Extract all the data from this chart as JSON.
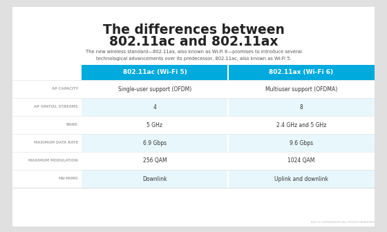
{
  "title_line1": "The differences between",
  "title_line2": "802.11ac and 802.11ax",
  "subtitle": "The new wireless standard—802.11ax, also known as Wi-Fi 6—promises to introduce several\ntechnological advancements over its predecessor, 802.11ac, also known as Wi-Fi 5.",
  "col_headers": [
    "802.11ac (Wi-Fi 5)",
    "802.11ax (Wi-Fi 6)"
  ],
  "row_labels": [
    "AP CAPACITY",
    "AP SPATIAL STREAMS",
    "BAND",
    "MAXIMUM DATA RATE",
    "MAXIMUM MODULATION",
    "MU-MIMO"
  ],
  "col1_values": [
    "Single-user support (OFDM)",
    "4",
    "5 GHz",
    "6.9 Gbps",
    "256 QAM",
    "Downlink"
  ],
  "col2_values": [
    "Multiuser support (OFDMA)",
    "8",
    "2.4 GHz and 5 GHz",
    "9.6 Gbps",
    "1024 QAM",
    "Uplink and downlink"
  ],
  "header_bg": "#00AADD",
  "header_text": "#FFFFFF",
  "row_bg_light": "#E8F7FC",
  "row_bg_white": "#FFFFFF",
  "label_color": "#AAAAAA",
  "value_color": "#333333",
  "title_color": "#222222",
  "subtitle_color": "#555555",
  "background_outer": "#E0E0E0",
  "background_inner": "#FFFFFF",
  "footer_text": "802.11 DIFFERENCES ALL RIGHTS RESERVED",
  "footer_color": "#BBBBBB"
}
